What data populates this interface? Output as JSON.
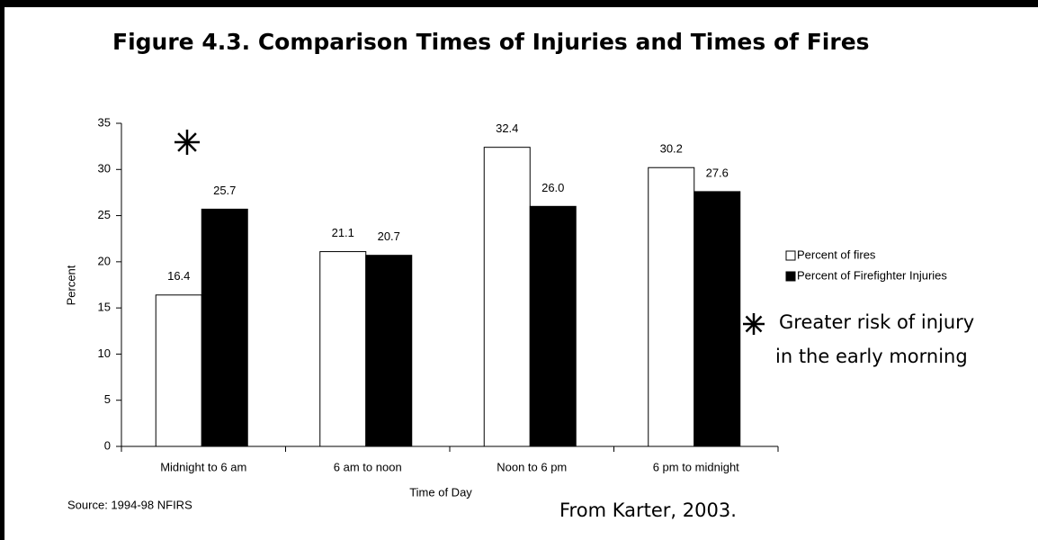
{
  "chart_data": {
    "type": "bar",
    "title": "Figure 4.3. Comparison Times of Injuries and Times of Fires",
    "categories": [
      "Midnight to 6 am",
      "6 am to noon",
      "Noon to 6 pm",
      "6 pm to midnight"
    ],
    "series": [
      {
        "name": "Percent of fires",
        "color": "#ffffff",
        "values": [
          16.4,
          21.1,
          32.4,
          30.2
        ],
        "value_labels": [
          "16.4",
          "21.1",
          "32.4",
          "30.2"
        ]
      },
      {
        "name": "Percent of Firefighter Injuries",
        "color": "#000000",
        "values": [
          25.7,
          20.7,
          26.0,
          27.6
        ],
        "value_labels": [
          "25.7",
          "20.7",
          "26.0",
          "27.6"
        ]
      }
    ],
    "ylim": [
      0,
      35
    ],
    "yticks": [
      0,
      5,
      10,
      15,
      20,
      25,
      30,
      35
    ],
    "y_label": "Percent",
    "x_label": "Time of Day",
    "legend": "right",
    "annotations": [
      "Greater risk of injury",
      "in the early morning"
    ],
    "source": "Source: 1994-98 NFIRS",
    "credit": "From Karter, 2003."
  }
}
